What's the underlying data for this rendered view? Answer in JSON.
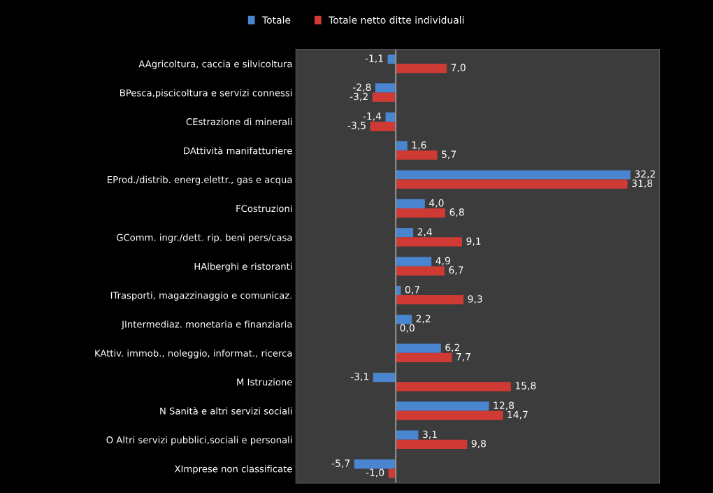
{
  "chart_data": {
    "type": "bar",
    "orientation": "horizontal",
    "categories": [
      "AAgricoltura, caccia e silvicoltura",
      "BPesca,piscicoltura e servizi connessi",
      "CEstrazione di minerali",
      "DAttività manifatturiere",
      "EProd./distrib. energ.elettr., gas e acqua",
      "FCostruzioni",
      "GComm. ingr./dett. rip. beni pers/casa",
      "HAlberghi e ristoranti",
      "ITrasporti, magazzinaggio e comunicaz.",
      "JIntermediaz. monetaria e finanziaria",
      "KAttiv. immob., noleggio, informat., ricerca",
      "M Istruzione",
      "N Sanità e altri servizi sociali",
      "O Altri servizi pubblici,sociali e personali",
      "XImprese non classificate"
    ],
    "series": [
      {
        "name": "Totale",
        "color": "#4a86d0",
        "values": [
          -1.1,
          -2.8,
          -1.4,
          1.6,
          32.2,
          4.0,
          2.4,
          4.9,
          0.7,
          2.2,
          6.2,
          -3.1,
          12.8,
          3.1,
          -5.7
        ],
        "value_labels": [
          "-1,1",
          "-2,8",
          "-1,4",
          "1,6",
          "32,2",
          "4,0",
          "2,4",
          "4,9",
          "0,7",
          "2,2",
          "6,2",
          "-3,1",
          "12,8",
          "3,1",
          "-5,7"
        ]
      },
      {
        "name": "Totale netto ditte individuali",
        "color": "#d03a35",
        "values": [
          7.0,
          -3.2,
          -3.5,
          5.7,
          31.8,
          6.8,
          9.1,
          6.7,
          9.3,
          0.0,
          7.7,
          15.8,
          14.7,
          9.8,
          -1.0
        ],
        "value_labels": [
          "7,0",
          "-3,2",
          "-3,5",
          "5,7",
          "31,8",
          "6,8",
          "9,1",
          "6,7",
          "9,3",
          "0,0",
          "7,7",
          "15,8",
          "14,7",
          "9,8",
          "-1,0"
        ]
      }
    ],
    "xlim": [
      -13.7,
      36.2
    ],
    "tick_labels": "y",
    "grid": false,
    "legend": "top"
  }
}
